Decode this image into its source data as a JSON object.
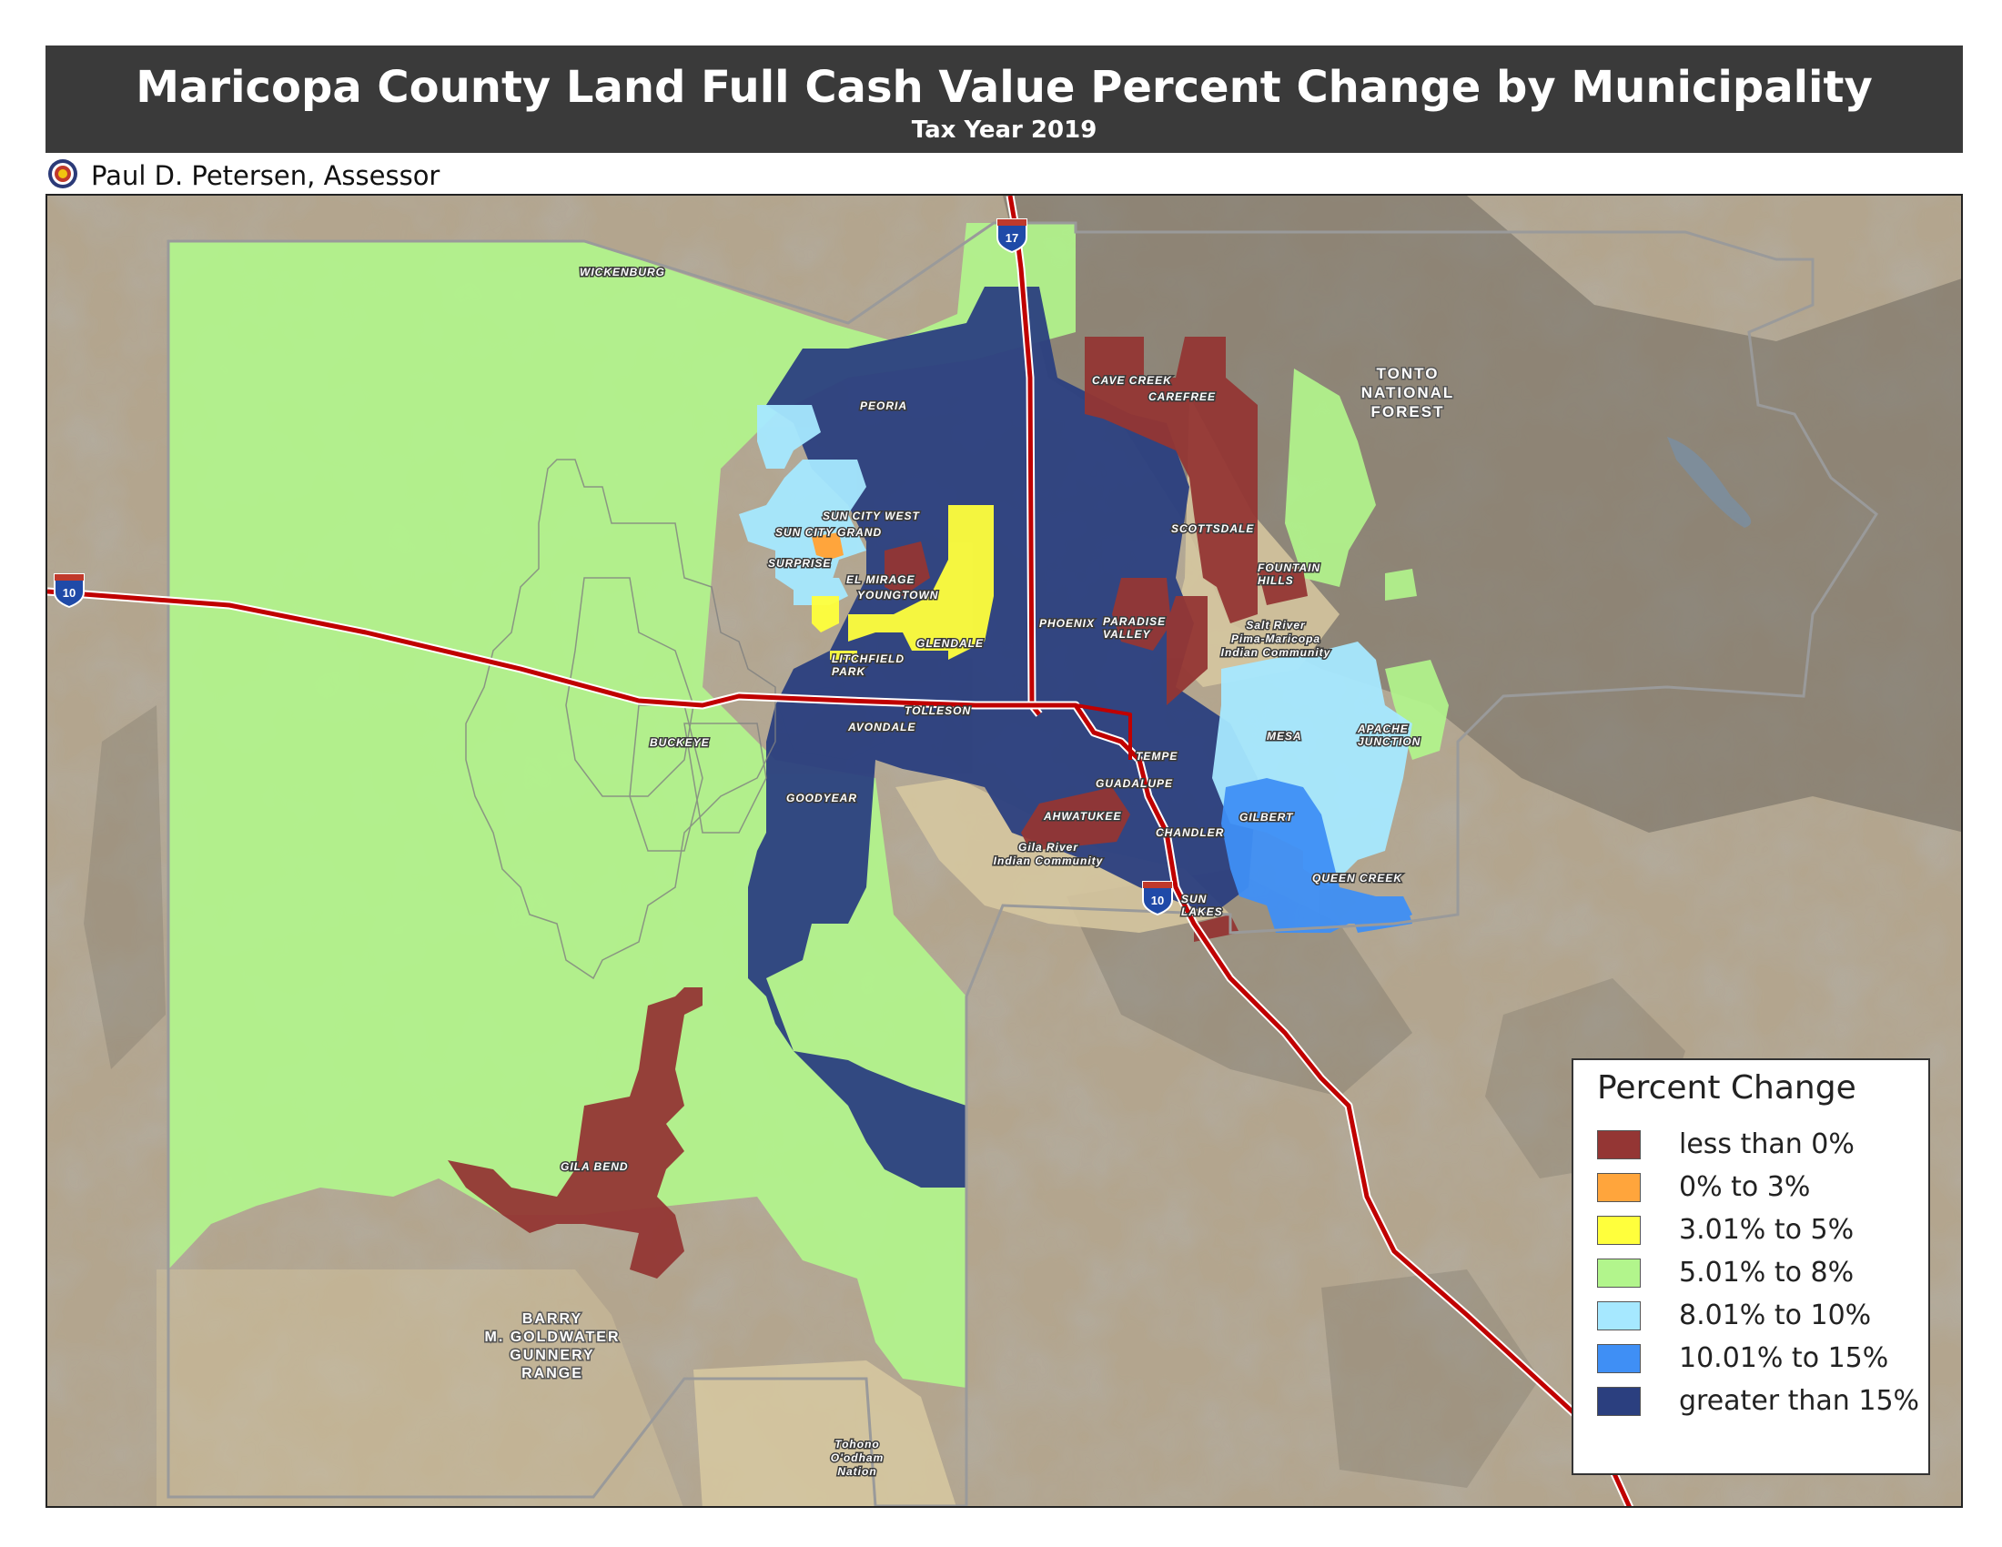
{
  "header": {
    "title": "Maricopa County Land Full Cash Value Percent Change by Municipality",
    "subtitle": "Tax Year 2019",
    "assessor": "Paul D. Petersen, Assessor"
  },
  "map": {
    "highways": [
      {
        "shield": "17"
      },
      {
        "shield": "10"
      },
      {
        "shield": "10"
      }
    ],
    "municipality_labels": [
      {
        "name": "WICKENBURG",
        "category": "5.01% to 8%"
      },
      {
        "name": "PEORIA",
        "category": "greater than 15%"
      },
      {
        "name": "CAVE CREEK",
        "category": "less than 0%"
      },
      {
        "name": "CAREFREE",
        "category": "less than 0%"
      },
      {
        "name": "SUN CITY WEST",
        "category": "8.01% to 10%"
      },
      {
        "name": "SUN CITY GRAND",
        "category": "0% to 3%"
      },
      {
        "name": "SURPRISE",
        "category": "8.01% to 10%"
      },
      {
        "name": "EL MIRAGE",
        "category": "less than 0%"
      },
      {
        "name": "YOUNGTOWN",
        "category": "less than 0%"
      },
      {
        "name": "SCOTTSDALE",
        "category": "less than 0%"
      },
      {
        "name": "FOUNTAIN HILLS",
        "category": "less than 0%"
      },
      {
        "name": "PHOENIX",
        "category": "greater than 15%"
      },
      {
        "name": "PARADISE VALLEY",
        "category": "less than 0%"
      },
      {
        "name": "GLENDALE",
        "category": "3.01% to 5%"
      },
      {
        "name": "LITCHFIELD PARK",
        "category": "3.01% to 5%"
      },
      {
        "name": "TOLLESON",
        "category": "greater than 15%"
      },
      {
        "name": "AVONDALE",
        "category": "greater than 15%"
      },
      {
        "name": "BUCKEYE",
        "category": "5.01% to 8%"
      },
      {
        "name": "MESA",
        "category": "8.01% to 10%"
      },
      {
        "name": "APACHE JUNCTION",
        "category": "5.01% to 8%"
      },
      {
        "name": "TEMPE",
        "category": "greater than 15%"
      },
      {
        "name": "GUADALUPE",
        "category": "greater than 15%"
      },
      {
        "name": "GOODYEAR",
        "category": "greater than 15%"
      },
      {
        "name": "AHWATUKEE",
        "category": "less than 0%"
      },
      {
        "name": "GILBERT",
        "category": "10.01% to 15%"
      },
      {
        "name": "CHANDLER",
        "category": "greater than 15%"
      },
      {
        "name": "QUEEN CREEK",
        "category": "10.01% to 15%"
      },
      {
        "name": "SUN LAKES",
        "category": "less than 0%"
      },
      {
        "name": "GILA BEND",
        "category": "less than 0%"
      }
    ],
    "area_labels": [
      {
        "line1": "TONTO",
        "line2": "NATIONAL",
        "line3": "FOREST"
      },
      {
        "line1": "Salt River",
        "line2": "Pima-Maricopa",
        "line3": "Indian Community"
      },
      {
        "line1": "Gila River",
        "line2": "Indian Community",
        "line3": ""
      },
      {
        "line1": "BARRY",
        "line2": "M. GOLDWATER",
        "line3": "GUNNERY",
        "line4": "RANGE"
      },
      {
        "line1": "Tohono",
        "line2": "O'odham",
        "line3": "Nation"
      }
    ]
  },
  "legend": {
    "title": "Percent Change",
    "items": [
      {
        "label": "less than 0%",
        "color": "#943634"
      },
      {
        "label": "0% to 3%",
        "color": "#ffa53c"
      },
      {
        "label": "3.01% to 5%",
        "color": "#ffff3c"
      },
      {
        "label": "5.01% to 8%",
        "color": "#b2f58c"
      },
      {
        "label": "8.01% to 10%",
        "color": "#a6e8ff"
      },
      {
        "label": "10.01% to 15%",
        "color": "#3f8ff5"
      },
      {
        "label": "greater than 15%",
        "color": "#2b3f7f"
      }
    ]
  },
  "colors": {
    "header_bg": "#3a3a3a",
    "terrain": "#b3a58e",
    "mountains": "#7d786d",
    "highway": "#c00000",
    "county_outline": "#8f8f8f"
  }
}
